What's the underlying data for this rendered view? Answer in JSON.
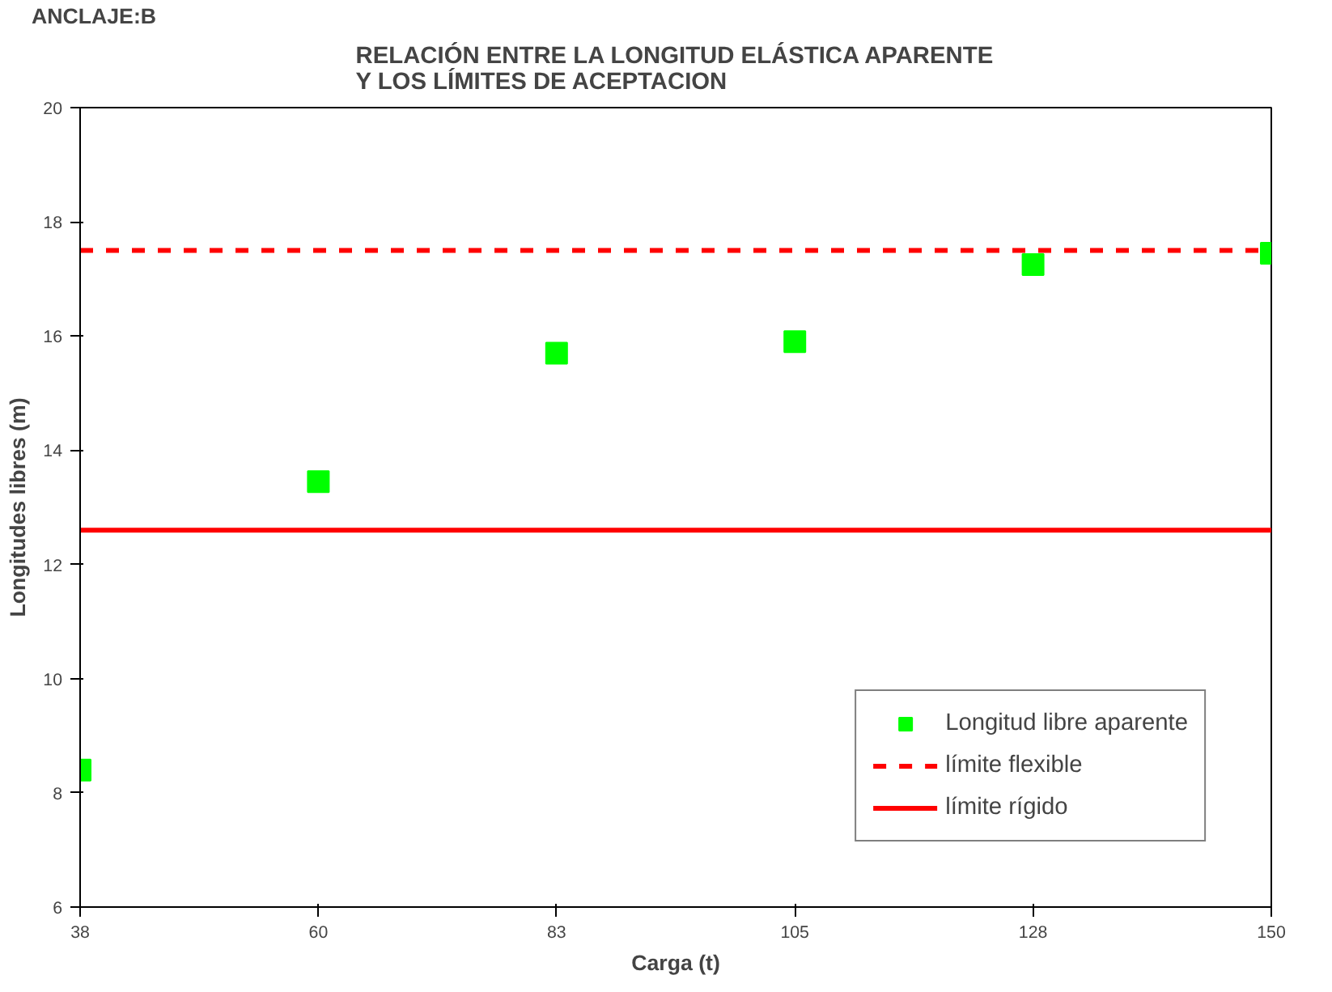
{
  "chart_data": {
    "type": "scatter",
    "title": "RELACIÓN ENTRE LA LONGITUD ELÁSTICA APARENTE\nY LOS LÍMITES DE ACEPTACION",
    "annotations": [
      "ANCLAJE:B"
    ],
    "xlabel": "Carga (t)",
    "ylabel": "Longitudes libres (m)",
    "categories": [
      "38",
      "60",
      "83",
      "105",
      "128",
      "150"
    ],
    "ylim": [
      6,
      20
    ],
    "yticks": [
      6,
      8,
      10,
      12,
      14,
      16,
      18,
      20
    ],
    "grid": false,
    "legend": "bottom right",
    "series": [
      {
        "name": "Longitud libre aparente",
        "type": "scatter",
        "marker": "square",
        "color": "#00ff00",
        "values": [
          8.4,
          13.45,
          15.7,
          15.9,
          17.25,
          17.45
        ]
      },
      {
        "name": "límite flexible",
        "type": "line",
        "line_style": "dashed",
        "color": "#ff0000",
        "values": [
          17.5,
          17.5,
          17.5,
          17.5,
          17.5,
          17.5
        ]
      },
      {
        "name": "límite rígido",
        "type": "line",
        "line_style": "solid",
        "color": "#ff0000",
        "values": [
          12.6,
          12.6,
          12.6,
          12.6,
          12.6,
          12.6
        ]
      }
    ]
  }
}
